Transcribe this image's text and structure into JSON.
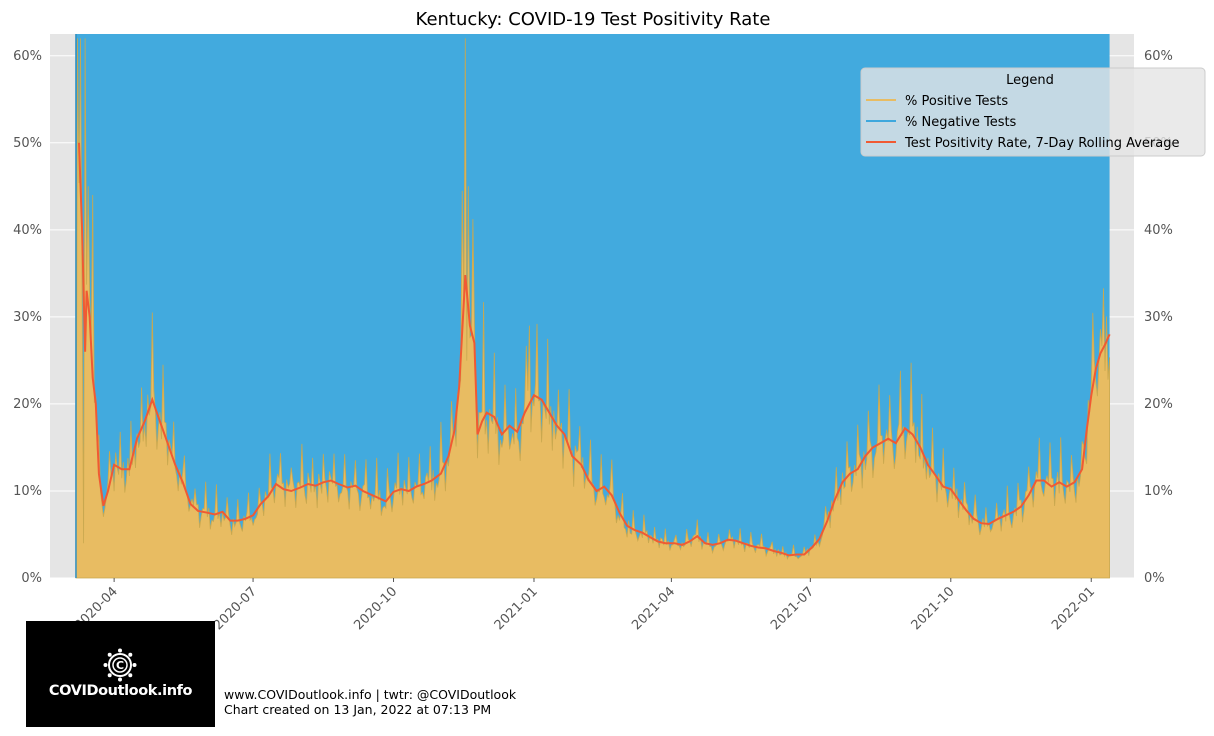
{
  "chart_data": {
    "type": "area",
    "title": "Kentucky: COVID-19 Test Positivity Rate",
    "xlabel": "",
    "ylabel": "",
    "x_range": [
      "2020-03-06",
      "2022-01-13"
    ],
    "ylim": [
      0,
      0.625
    ],
    "yticks": [
      {
        "value": 0,
        "label": "0%"
      },
      {
        "value": 0.1,
        "label": "10%"
      },
      {
        "value": 0.2,
        "label": "20%"
      },
      {
        "value": 0.3,
        "label": "30%"
      },
      {
        "value": 0.4,
        "label": "40%"
      },
      {
        "value": 0.5,
        "label": "50%"
      },
      {
        "value": 0.6,
        "label": "60%"
      }
    ],
    "xticks": [
      {
        "date": "2020-04-01",
        "label": "2020-04"
      },
      {
        "date": "2020-07-01",
        "label": "2020-07"
      },
      {
        "date": "2020-10-01",
        "label": "2020-10"
      },
      {
        "date": "2021-01-01",
        "label": "2021-01"
      },
      {
        "date": "2021-04-01",
        "label": "2021-04"
      },
      {
        "date": "2021-07-01",
        "label": "2021-07"
      },
      {
        "date": "2021-10-01",
        "label": "2021-10"
      },
      {
        "date": "2022-01-01",
        "label": "2022-01"
      }
    ],
    "legend": {
      "title": "Legend",
      "position": "top-right",
      "entries": [
        {
          "label": "% Positive Tests",
          "color": "#e8bc62"
        },
        {
          "label": "% Negative Tests",
          "color": "#3ea8dd"
        },
        {
          "label": "Test Positivity Rate, 7-Day Rolling Average",
          "color": "#f05a33"
        }
      ]
    },
    "series": [
      {
        "name": "Test Positivity Rate, 7-Day Rolling Average",
        "color": "#f05a33",
        "points": [
          [
            "2020-03-09",
            0.5
          ],
          [
            "2020-03-11",
            0.4
          ],
          [
            "2020-03-13",
            0.26
          ],
          [
            "2020-03-14",
            0.33
          ],
          [
            "2020-03-16",
            0.3
          ],
          [
            "2020-03-18",
            0.23
          ],
          [
            "2020-03-20",
            0.2
          ],
          [
            "2020-03-22",
            0.12
          ],
          [
            "2020-03-25",
            0.083
          ],
          [
            "2020-03-28",
            0.1
          ],
          [
            "2020-04-01",
            0.13
          ],
          [
            "2020-04-06",
            0.125
          ],
          [
            "2020-04-11",
            0.125
          ],
          [
            "2020-04-16",
            0.16
          ],
          [
            "2020-04-21",
            0.18
          ],
          [
            "2020-04-26",
            0.205
          ],
          [
            "2020-05-01",
            0.18
          ],
          [
            "2020-05-06",
            0.155
          ],
          [
            "2020-05-11",
            0.13
          ],
          [
            "2020-05-16",
            0.11
          ],
          [
            "2020-05-21",
            0.085
          ],
          [
            "2020-05-26",
            0.077
          ],
          [
            "2020-06-01",
            0.075
          ],
          [
            "2020-06-06",
            0.073
          ],
          [
            "2020-06-11",
            0.076
          ],
          [
            "2020-06-16",
            0.066
          ],
          [
            "2020-06-21",
            0.066
          ],
          [
            "2020-06-26",
            0.068
          ],
          [
            "2020-07-01",
            0.072
          ],
          [
            "2020-07-06",
            0.085
          ],
          [
            "2020-07-11",
            0.094
          ],
          [
            "2020-07-16",
            0.108
          ],
          [
            "2020-07-21",
            0.102
          ],
          [
            "2020-07-26",
            0.1
          ],
          [
            "2020-08-01",
            0.104
          ],
          [
            "2020-08-06",
            0.108
          ],
          [
            "2020-08-11",
            0.106
          ],
          [
            "2020-08-16",
            0.11
          ],
          [
            "2020-08-21",
            0.112
          ],
          [
            "2020-08-26",
            0.108
          ],
          [
            "2020-09-01",
            0.104
          ],
          [
            "2020-09-06",
            0.106
          ],
          [
            "2020-09-11",
            0.1
          ],
          [
            "2020-09-16",
            0.096
          ],
          [
            "2020-09-21",
            0.092
          ],
          [
            "2020-09-26",
            0.088
          ],
          [
            "2020-10-01",
            0.099
          ],
          [
            "2020-10-06",
            0.102
          ],
          [
            "2020-10-11",
            0.1
          ],
          [
            "2020-10-16",
            0.105
          ],
          [
            "2020-10-21",
            0.108
          ],
          [
            "2020-10-26",
            0.112
          ],
          [
            "2020-11-01",
            0.12
          ],
          [
            "2020-11-06",
            0.14
          ],
          [
            "2020-11-10",
            0.17
          ],
          [
            "2020-11-13",
            0.22
          ],
          [
            "2020-11-17",
            0.348
          ],
          [
            "2020-11-20",
            0.29
          ],
          [
            "2020-11-23",
            0.27
          ],
          [
            "2020-11-25",
            0.165
          ],
          [
            "2020-11-28",
            0.18
          ],
          [
            "2020-12-01",
            0.19
          ],
          [
            "2020-12-06",
            0.185
          ],
          [
            "2020-12-11",
            0.165
          ],
          [
            "2020-12-16",
            0.175
          ],
          [
            "2020-12-21",
            0.168
          ],
          [
            "2020-12-26",
            0.19
          ],
          [
            "2021-01-01",
            0.21
          ],
          [
            "2021-01-06",
            0.205
          ],
          [
            "2021-01-11",
            0.19
          ],
          [
            "2021-01-16",
            0.175
          ],
          [
            "2021-01-21",
            0.165
          ],
          [
            "2021-01-26",
            0.14
          ],
          [
            "2021-02-01",
            0.13
          ],
          [
            "2021-02-06",
            0.112
          ],
          [
            "2021-02-11",
            0.1
          ],
          [
            "2021-02-16",
            0.105
          ],
          [
            "2021-02-21",
            0.095
          ],
          [
            "2021-02-26",
            0.075
          ],
          [
            "2021-03-03",
            0.06
          ],
          [
            "2021-03-08",
            0.055
          ],
          [
            "2021-03-13",
            0.052
          ],
          [
            "2021-03-18",
            0.047
          ],
          [
            "2021-03-23",
            0.042
          ],
          [
            "2021-03-28",
            0.04
          ],
          [
            "2021-04-03",
            0.04
          ],
          [
            "2021-04-08",
            0.038
          ],
          [
            "2021-04-13",
            0.042
          ],
          [
            "2021-04-18",
            0.048
          ],
          [
            "2021-04-23",
            0.04
          ],
          [
            "2021-04-28",
            0.038
          ],
          [
            "2021-05-03",
            0.04
          ],
          [
            "2021-05-08",
            0.044
          ],
          [
            "2021-05-13",
            0.043
          ],
          [
            "2021-05-18",
            0.04
          ],
          [
            "2021-05-23",
            0.037
          ],
          [
            "2021-05-28",
            0.035
          ],
          [
            "2021-06-02",
            0.034
          ],
          [
            "2021-06-07",
            0.031
          ],
          [
            "2021-06-12",
            0.029
          ],
          [
            "2021-06-17",
            0.026
          ],
          [
            "2021-06-22",
            0.027
          ],
          [
            "2021-06-27",
            0.027
          ],
          [
            "2021-07-02",
            0.035
          ],
          [
            "2021-07-07",
            0.045
          ],
          [
            "2021-07-12",
            0.065
          ],
          [
            "2021-07-17",
            0.09
          ],
          [
            "2021-07-22",
            0.11
          ],
          [
            "2021-07-27",
            0.12
          ],
          [
            "2021-08-01",
            0.125
          ],
          [
            "2021-08-06",
            0.14
          ],
          [
            "2021-08-11",
            0.15
          ],
          [
            "2021-08-16",
            0.155
          ],
          [
            "2021-08-21",
            0.16
          ],
          [
            "2021-08-26",
            0.155
          ],
          [
            "2021-09-01",
            0.172
          ],
          [
            "2021-09-06",
            0.165
          ],
          [
            "2021-09-11",
            0.15
          ],
          [
            "2021-09-16",
            0.13
          ],
          [
            "2021-09-21",
            0.118
          ],
          [
            "2021-09-26",
            0.105
          ],
          [
            "2021-10-01",
            0.102
          ],
          [
            "2021-10-06",
            0.09
          ],
          [
            "2021-10-11",
            0.078
          ],
          [
            "2021-10-16",
            0.068
          ],
          [
            "2021-10-21",
            0.063
          ],
          [
            "2021-10-26",
            0.062
          ],
          [
            "2021-11-01",
            0.068
          ],
          [
            "2021-11-06",
            0.072
          ],
          [
            "2021-11-11",
            0.076
          ],
          [
            "2021-11-16",
            0.082
          ],
          [
            "2021-11-21",
            0.095
          ],
          [
            "2021-11-26",
            0.112
          ],
          [
            "2021-12-01",
            0.112
          ],
          [
            "2021-12-06",
            0.105
          ],
          [
            "2021-12-11",
            0.11
          ],
          [
            "2021-12-16",
            0.105
          ],
          [
            "2021-12-21",
            0.11
          ],
          [
            "2021-12-26",
            0.125
          ],
          [
            "2021-12-29",
            0.17
          ],
          [
            "2022-01-01",
            0.21
          ],
          [
            "2022-01-04",
            0.24
          ],
          [
            "2022-01-07",
            0.258
          ],
          [
            "2022-01-10",
            0.268
          ],
          [
            "2022-01-13",
            0.28
          ]
        ]
      },
      {
        "name": "% Positive Tests",
        "color": "#e8bc62",
        "description": "Daily positive share; noisy around the rolling average, spikes to ~0.62 in Mar 2020 and Nov 2020"
      },
      {
        "name": "% Negative Tests",
        "color": "#3ea8dd",
        "description": "Stacked on top of % Positive Tests, filling to 100%"
      }
    ],
    "grid": true
  },
  "footer": {
    "line1": "www.COVIDoutlook.info | twtr: @COVIDoutlook",
    "line2": "Chart created on 13 Jan, 2022 at 07:13 PM"
  },
  "logo": {
    "text": "COVIDoutlook.info"
  }
}
